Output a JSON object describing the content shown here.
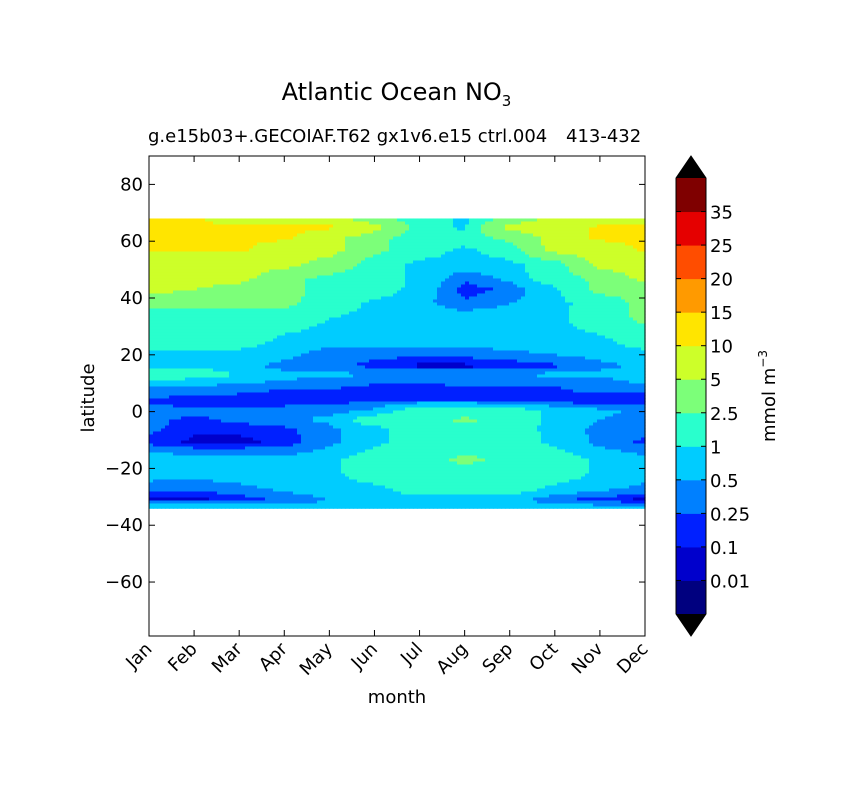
{
  "chart_data": {
    "type": "heatmap",
    "title": "Atlantic Ocean NO",
    "title_subscript": "3",
    "subtitle": "g.e15b03+.GECOIAF.T62 gx1v6.e15 ctrl.004",
    "subtitle_right": "413-432",
    "xlabel": "month",
    "ylabel": "latitude",
    "categories": [
      "Jan",
      "Feb",
      "Mar",
      "Apr",
      "May",
      "Jun",
      "Jul",
      "Aug",
      "Sep",
      "Oct",
      "Nov",
      "Dec"
    ],
    "yticks": [
      80,
      60,
      40,
      20,
      0,
      -20,
      -40,
      -60
    ],
    "yticklabels": [
      "80",
      "60",
      "40",
      "20",
      "0",
      "−20",
      "−40",
      "−60"
    ],
    "ylim": [
      -79,
      90
    ],
    "data_lat_range": [
      -34,
      68
    ],
    "colorbar": {
      "label": "mmol m",
      "label_superscript": "−3",
      "tick_labels": [
        "0.01",
        "0.1",
        "0.25",
        "0.5",
        "1",
        "2.5",
        "5",
        "10",
        "15",
        "20",
        "25",
        "35"
      ],
      "levels": [
        0,
        0.01,
        0.1,
        0.25,
        0.5,
        1,
        2.5,
        5,
        10,
        15,
        20,
        25,
        35,
        40
      ],
      "colors": [
        "#00007f",
        "#0000cc",
        "#0020ff",
        "#0080ff",
        "#00ccff",
        "#29ffcd",
        "#7cff79",
        "#cdff29",
        "#ffe500",
        "#ff9a00",
        "#ff4d00",
        "#e50000",
        "#7f0000"
      ],
      "extend_low_color": "#000000",
      "extend_high_color": "#000000"
    },
    "lat_rows": [
      -34,
      -31,
      -27,
      -22,
      -17,
      -11,
      -6,
      -3,
      0,
      4,
      7,
      11,
      13,
      16,
      20,
      25,
      33,
      38,
      43,
      47,
      52,
      57,
      61,
      65,
      68
    ],
    "values": [
      [
        1.0,
        1.0,
        1.0,
        0.8,
        0.6,
        0.6,
        0.7,
        0.8,
        0.8,
        0.7,
        0.7,
        0.6
      ],
      [
        0.05,
        0.05,
        0.15,
        0.3,
        0.5,
        0.6,
        0.7,
        0.7,
        0.6,
        0.3,
        0.15,
        0.05
      ],
      [
        0.3,
        0.3,
        0.4,
        0.6,
        0.7,
        0.8,
        1.5,
        1.5,
        1.5,
        0.8,
        0.6,
        0.4
      ],
      [
        0.7,
        0.6,
        0.7,
        0.8,
        0.8,
        1.5,
        1.5,
        1.5,
        1.5,
        1.5,
        0.8,
        0.7
      ],
      [
        0.7,
        0.7,
        0.7,
        0.6,
        0.8,
        1.5,
        1.5,
        3.0,
        2.0,
        1.5,
        0.8,
        0.6
      ],
      [
        0.2,
        0.05,
        0.05,
        0.15,
        0.4,
        0.8,
        1.5,
        1.5,
        1.5,
        0.8,
        0.4,
        0.2
      ],
      [
        0.3,
        0.15,
        0.15,
        0.2,
        0.4,
        0.8,
        1.5,
        1.5,
        1.5,
        0.7,
        0.4,
        0.3
      ],
      [
        0.3,
        0.2,
        0.3,
        0.4,
        0.6,
        1.5,
        1.5,
        3.0,
        1.5,
        0.8,
        0.5,
        0.3
      ],
      [
        0.4,
        0.3,
        0.3,
        0.4,
        0.4,
        0.6,
        1.5,
        1.5,
        1.5,
        0.8,
        0.6,
        0.4
      ],
      [
        0.2,
        0.1,
        0.1,
        0.1,
        0.15,
        0.2,
        0.2,
        0.2,
        0.15,
        0.1,
        0.1,
        0.1
      ],
      [
        0.4,
        0.4,
        0.3,
        0.2,
        0.2,
        0.15,
        0.15,
        0.2,
        0.2,
        0.2,
        0.3,
        0.3
      ],
      [
        0.7,
        0.6,
        0.6,
        0.5,
        0.4,
        0.3,
        0.3,
        0.3,
        0.3,
        0.3,
        0.4,
        0.6
      ],
      [
        3.0,
        2.0,
        0.8,
        0.6,
        0.6,
        0.5,
        0.5,
        0.5,
        0.5,
        0.6,
        0.6,
        0.7
      ],
      [
        0.6,
        0.6,
        0.6,
        0.4,
        0.3,
        0.2,
        0.05,
        0.05,
        0.1,
        0.2,
        0.4,
        0.6
      ],
      [
        0.7,
        0.7,
        0.7,
        0.6,
        0.3,
        0.3,
        0.3,
        0.3,
        0.4,
        0.5,
        0.6,
        0.7
      ],
      [
        1.5,
        1.5,
        1.5,
        0.8,
        0.7,
        0.7,
        0.7,
        0.7,
        0.7,
        0.8,
        0.8,
        1.5
      ],
      [
        1.5,
        1.5,
        1.5,
        1.5,
        1.0,
        0.8,
        0.7,
        0.7,
        0.7,
        0.8,
        1.5,
        3.0
      ],
      [
        3.0,
        3.0,
        3.0,
        3.0,
        1.5,
        0.8,
        0.6,
        0.3,
        0.5,
        0.7,
        1.5,
        3.0
      ],
      [
        6.0,
        5.0,
        4.0,
        3.0,
        2.0,
        1.5,
        0.7,
        0.15,
        0.3,
        0.8,
        3.0,
        3.0
      ],
      [
        6.0,
        6.0,
        6.0,
        3.0,
        2.0,
        1.5,
        0.8,
        0.3,
        0.6,
        1.5,
        3.0,
        6.0
      ],
      [
        6.0,
        6.0,
        6.0,
        6.0,
        4.0,
        1.5,
        0.8,
        0.7,
        0.8,
        1.5,
        6.0,
        6.0
      ],
      [
        11.0,
        11.0,
        11.0,
        6.0,
        6.0,
        3.0,
        1.5,
        0.8,
        1.5,
        6.0,
        6.0,
        11.0
      ],
      [
        11.0,
        11.0,
        11.0,
        11.0,
        6.0,
        3.0,
        1.5,
        1.5,
        3.0,
        6.0,
        11.0,
        11.0
      ],
      [
        11.0,
        11.0,
        11.0,
        11.0,
        11.0,
        6.0,
        1.5,
        0.8,
        6.0,
        6.0,
        11.0,
        11.0
      ],
      [
        11.0,
        11.0,
        6.0,
        6.0,
        6.0,
        3.0,
        1.5,
        0.8,
        3.0,
        6.0,
        6.0,
        6.0
      ]
    ]
  }
}
